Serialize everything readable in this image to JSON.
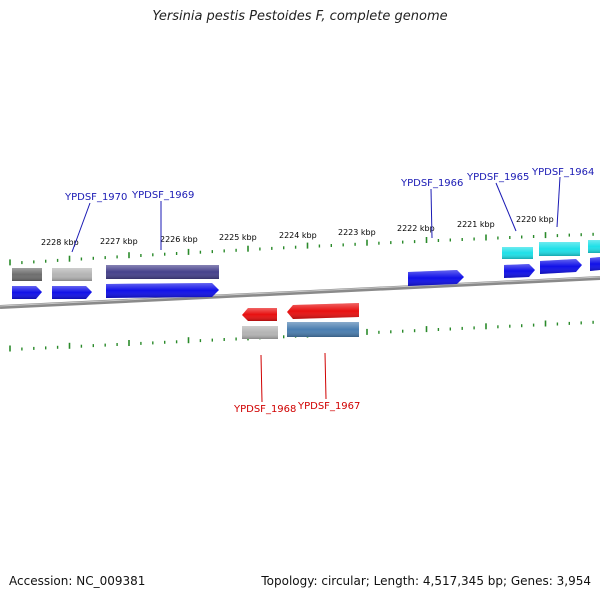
{
  "title": "Yersinia pestis Pestoides F, complete genome",
  "footer": {
    "accession": "Accession: NC_009381",
    "summary": "Topology: circular; Length: 4,517,345 bp; Genes: 3,954"
  },
  "colors": {
    "backbone": "#808080",
    "ticks": "#2a8a2a",
    "forward_label": "#1a1ab4",
    "reverse_label": "#d00000",
    "blue": "#1010e8",
    "cyan": "#1ee0e8",
    "red": "#e81010",
    "gray_dark": "#707070",
    "gray_light": "#b4b4b4",
    "purple": "#46418c",
    "steel": "#4a7eb0"
  },
  "scale_labels": [
    "2228 kbp",
    "2227 kbp",
    "2226 kbp",
    "2225 kbp",
    "2224 kbp",
    "2223 kbp",
    "2222 kbp",
    "2221 kbp",
    "2220 kbp"
  ],
  "forward_genes": [
    "YPDSF_1970",
    "YPDSF_1969",
    "YPDSF_1966",
    "YPDSF_1965",
    "YPDSF_1964"
  ],
  "reverse_genes": [
    "YPDSF_1968",
    "YPDSF_1967"
  ]
}
